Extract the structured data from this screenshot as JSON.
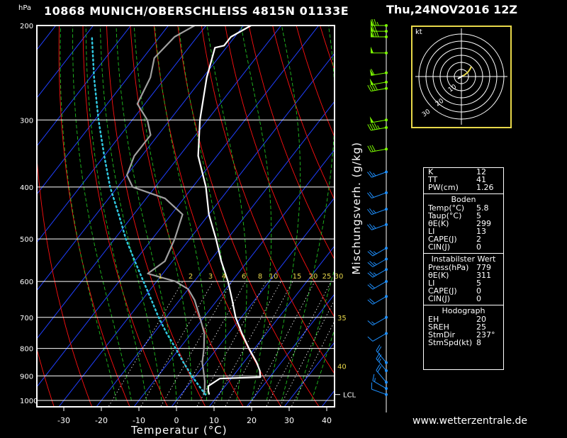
{
  "header": {
    "hpa_unit": "hPa",
    "title": "10868 MUNICH/OBERSCHLEISS 4815N 01133E",
    "datetime": "Thu,24NOV2016 12Z"
  },
  "footer": {
    "website": "www.wetterzentrale.de"
  },
  "hodograph": {
    "unit_label": "kt",
    "ring_labels": [
      "10",
      "20",
      "30"
    ]
  },
  "info": {
    "top": [
      {
        "k": "K",
        "v": "12"
      },
      {
        "k": "TT",
        "v": "41"
      },
      {
        "k": "PW(cm)",
        "v": "1.26"
      }
    ],
    "boden_title": "Boden",
    "boden": [
      {
        "k": "Temp(°C)",
        "v": "5.8"
      },
      {
        "k": "Taup(°C)",
        "v": "5"
      },
      {
        "k": "θE(K)",
        "v": "299"
      },
      {
        "k": "LI",
        "v": "13"
      },
      {
        "k": "CAPE(J)",
        "v": "2"
      },
      {
        "k": "CIN(J)",
        "v": "0"
      }
    ],
    "instab_title": "Instabilster Wert",
    "instab": [
      {
        "k": "Press(hPa)",
        "v": "779"
      },
      {
        "k": "θE(K)",
        "v": "311"
      },
      {
        "k": "LI",
        "v": "5"
      },
      {
        "k": "CAPE(J)",
        "v": "0"
      },
      {
        "k": "CIN(J)",
        "v": "0"
      }
    ],
    "hodo_title": "Hodograph",
    "hodo": [
      {
        "k": "EH",
        "v": "20"
      },
      {
        "k": "SREH",
        "v": "25"
      },
      {
        "k": "StmDir",
        "v": "237°"
      },
      {
        "k": "StmSpd(kt)",
        "v": "8"
      }
    ]
  },
  "chart_data": {
    "type": "line",
    "subtype": "skew-T log-p",
    "xlabel": "Temperatur (°C)",
    "ylabel": "hPa",
    "secondary_label": "Mischungsverh. (g/kg)",
    "xlim": [
      -38,
      42
    ],
    "ylim": [
      1025,
      200
    ],
    "x_ticks": [
      -30,
      -20,
      -10,
      0,
      10,
      20,
      30,
      40
    ],
    "p_ticks": [
      200,
      300,
      400,
      500,
      600,
      700,
      800,
      900,
      1000
    ],
    "mixing_ratio_labels": [
      "1",
      "2",
      "3",
      "4",
      "6",
      "8",
      "10",
      "15",
      "20",
      "25",
      "30"
    ],
    "side_labels": [
      "35",
      "40"
    ],
    "lcl_label": "LCL",
    "colors": {
      "isotherm": "#2040ff",
      "dry_adiabat": "#ff1010",
      "moist_adiabat": "#20c020",
      "mixing_ratio": "#ffffff",
      "temperature": "#ffffff",
      "dewpoint": "#a0a0a0",
      "parcel": "#30c8e0",
      "wind_upper": "#7cfc00",
      "wind_lower": "#1e90ff",
      "hodo_frame": "#e8d84a",
      "label_yellow": "#e8d84a"
    },
    "series": [
      {
        "name": "Temperatur",
        "p": [
          975,
          960,
          940,
          910,
          905,
          880,
          850,
          800,
          750,
          700,
          650,
          600,
          550,
          500,
          450,
          400,
          350,
          300,
          250,
          220,
          218,
          210,
          200
        ],
        "t": [
          7.5,
          6.5,
          5.5,
          7.0,
          17.5,
          16.0,
          13.5,
          8.5,
          3.5,
          -1.5,
          -6.0,
          -11.0,
          -17.0,
          -23.0,
          -30.0,
          -36.5,
          -45.0,
          -52.0,
          -59.0,
          -63.0,
          -61.0,
          -61.0,
          -58.0
        ]
      },
      {
        "name": "Taupunkt",
        "p": [
          975,
          950,
          920,
          880,
          850,
          800,
          750,
          700,
          650,
          620,
          600,
          580,
          550,
          500,
          450,
          420,
          400,
          380,
          350,
          320,
          300,
          280,
          250,
          230,
          210,
          200
        ],
        "t": [
          6.0,
          5.0,
          3.5,
          1.0,
          -1.0,
          -3.5,
          -6.5,
          -11.0,
          -16.0,
          -20.0,
          -25.0,
          -34.0,
          -32.0,
          -34.0,
          -37.0,
          -45.0,
          -56.0,
          -60.0,
          -62.0,
          -62.0,
          -66.0,
          -72.0,
          -74.0,
          -77.0,
          -76.0,
          -73.0
        ]
      },
      {
        "name": "Parcel",
        "p": [
          975,
          950,
          900,
          850,
          800,
          750,
          700,
          650,
          600,
          550,
          500,
          450,
          400,
          350,
          300,
          250,
          210
        ],
        "t": [
          6.5,
          4.0,
          -1.0,
          -6.0,
          -11.0,
          -16.5,
          -22.0,
          -27.5,
          -33.5,
          -40.0,
          -47.0,
          -54.0,
          -62.0,
          -70.0,
          -79.0,
          -89.0,
          -98.0
        ]
      }
    ],
    "wind_barbs": [
      {
        "p": 200,
        "dir": 270,
        "kt": 75
      },
      {
        "p": 205,
        "dir": 270,
        "kt": 70
      },
      {
        "p": 210,
        "dir": 270,
        "kt": 80
      },
      {
        "p": 225,
        "dir": 270,
        "kt": 50
      },
      {
        "p": 245,
        "dir": 260,
        "kt": 60
      },
      {
        "p": 255,
        "dir": 260,
        "kt": 50
      },
      {
        "p": 262,
        "dir": 260,
        "kt": 40
      },
      {
        "p": 300,
        "dir": 260,
        "kt": 50
      },
      {
        "p": 310,
        "dir": 260,
        "kt": 45
      },
      {
        "p": 340,
        "dir": 260,
        "kt": 30
      },
      {
        "p": 375,
        "dir": 250,
        "kt": 25
      },
      {
        "p": 410,
        "dir": 250,
        "kt": 20
      },
      {
        "p": 440,
        "dir": 250,
        "kt": 25
      },
      {
        "p": 470,
        "dir": 250,
        "kt": 25
      },
      {
        "p": 520,
        "dir": 240,
        "kt": 25
      },
      {
        "p": 545,
        "dir": 240,
        "kt": 25
      },
      {
        "p": 570,
        "dir": 240,
        "kt": 25
      },
      {
        "p": 600,
        "dir": 240,
        "kt": 20
      },
      {
        "p": 640,
        "dir": 240,
        "kt": 20
      },
      {
        "p": 700,
        "dir": 240,
        "kt": 15
      },
      {
        "p": 750,
        "dir": 240,
        "kt": 10
      },
      {
        "p": 850,
        "dir": 320,
        "kt": 20
      },
      {
        "p": 880,
        "dir": 320,
        "kt": 25
      },
      {
        "p": 925,
        "dir": 320,
        "kt": 20
      },
      {
        "p": 950,
        "dir": 300,
        "kt": 15
      },
      {
        "p": 975,
        "dir": 290,
        "kt": 10
      }
    ]
  }
}
